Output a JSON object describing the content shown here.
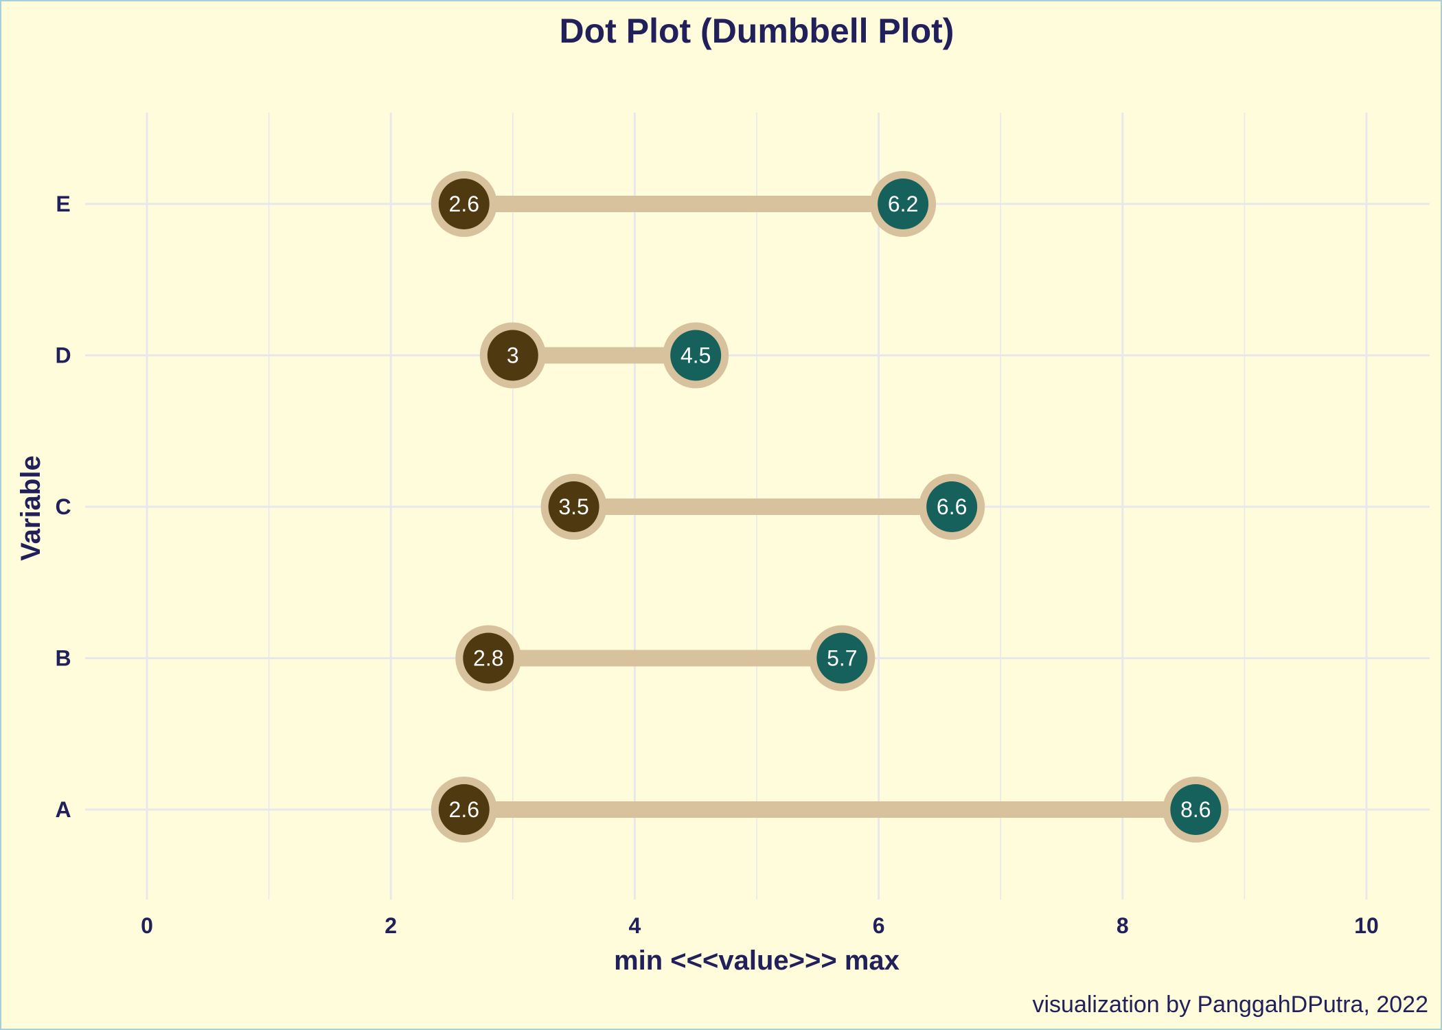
{
  "chart_data": {
    "type": "dumbbell",
    "title": "Dot Plot (Dumbbell Plot)",
    "xlabel": "min <<<value>>> max",
    "ylabel": "Variable",
    "caption": "visualization by PanggahDPutra, 2022",
    "xlim": [
      0,
      10
    ],
    "x_ticks": [
      0,
      2,
      4,
      6,
      8,
      10
    ],
    "categories": [
      "A",
      "B",
      "C",
      "D",
      "E"
    ],
    "series": [
      {
        "name": "min",
        "values": [
          2.6,
          2.8,
          3.5,
          3,
          2.6
        ]
      },
      {
        "name": "max",
        "values": [
          8.6,
          5.7,
          6.6,
          4.5,
          6.2
        ]
      }
    ],
    "grid": true,
    "colors": {
      "background": "#fffcdc",
      "min_point": "#4e3910",
      "max_point": "#17615d",
      "segment": "#d8c29d",
      "grid": "#e8e8ec",
      "text": "#22205a"
    }
  }
}
